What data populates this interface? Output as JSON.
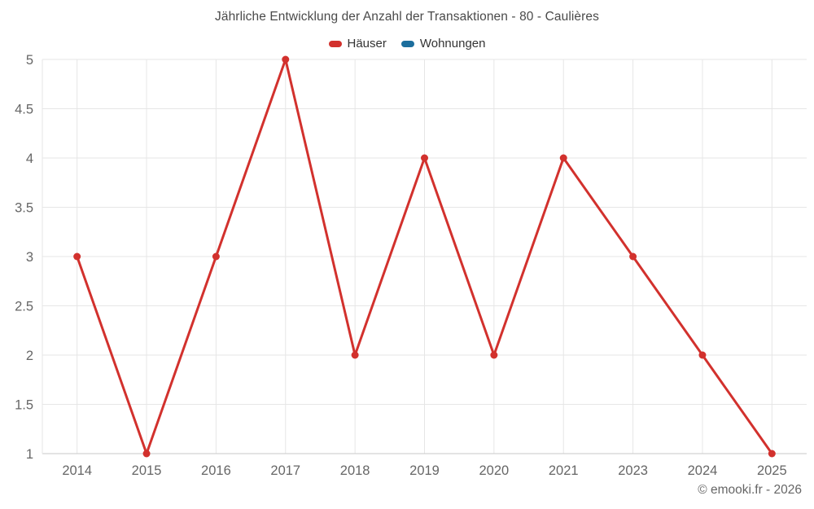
{
  "chart_data": {
    "type": "line",
    "title": "Jährliche Entwicklung der Anzahl der Transaktionen - 80 - Caulières",
    "categories": [
      "2014",
      "2015",
      "2016",
      "2017",
      "2018",
      "2019",
      "2020",
      "2021",
      "2023",
      "2024",
      "2025"
    ],
    "series": [
      {
        "name": "Häuser",
        "color": "#d2312d",
        "values": [
          3,
          1,
          3,
          5,
          2,
          4,
          2,
          4,
          3,
          2,
          1
        ]
      },
      {
        "name": "Wohnungen",
        "color": "#1c6e9d",
        "values": []
      }
    ],
    "xlabel": "",
    "ylabel": "",
    "ylim": [
      1,
      5
    ],
    "ytick_step": 0.5,
    "ytick_labels": [
      "1",
      "1.5",
      "2",
      "2.5",
      "3",
      "3.5",
      "4",
      "4.5",
      "5"
    ],
    "grid": true,
    "legend_position": "top",
    "credits": "© emooki.fr - 2026"
  },
  "colors": {
    "background": "#ffffff",
    "grid": "#e6e6e6",
    "axis_line": "#c9c9c9",
    "title_text": "#4a4a4a",
    "tick_text": "#666666",
    "legend_text": "#333333"
  }
}
